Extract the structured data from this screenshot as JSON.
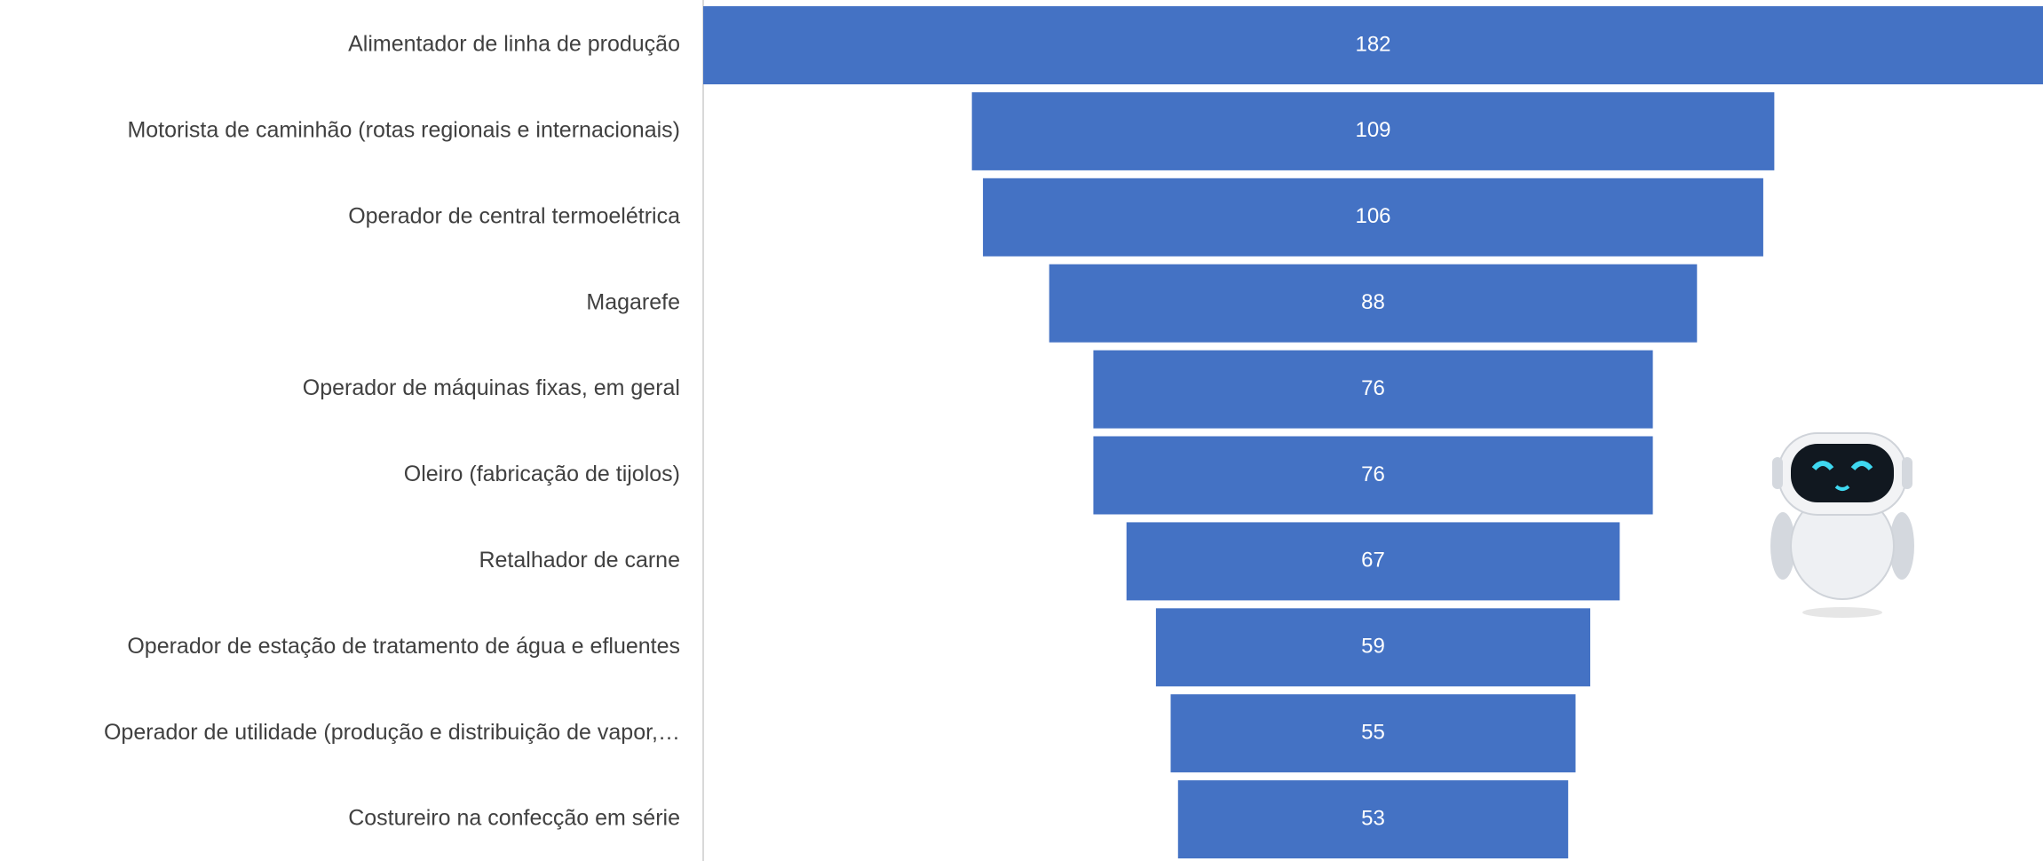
{
  "chart_data": {
    "type": "funnel",
    "categories": [
      "Alimentador de linha de produção",
      "Motorista de caminhão (rotas regionais e internacionais)",
      "Operador de central termoelétrica",
      "Magarefe",
      "Operador de máquinas fixas, em geral",
      "Oleiro (fabricação de tijolos)",
      "Retalhador de carne",
      "Operador de estação de tratamento de água e efluentes",
      "Operador de utilidade (produção e distribuição de vapor,…",
      "Costureiro na confecção em série"
    ],
    "values": [
      182,
      109,
      106,
      88,
      76,
      76,
      67,
      59,
      55,
      53
    ],
    "color": "#4472c4"
  }
}
